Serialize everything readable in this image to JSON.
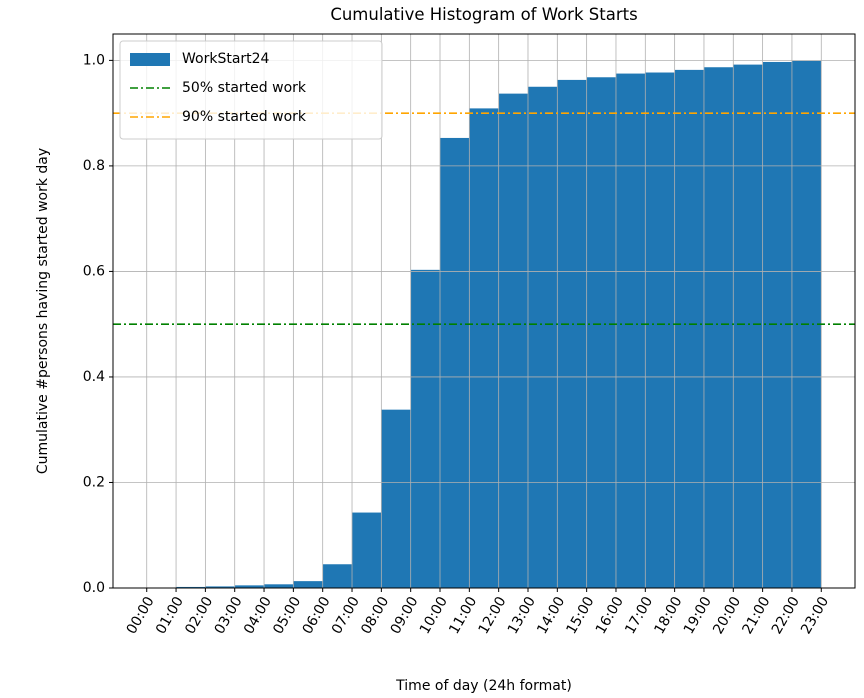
{
  "chart_data": {
    "type": "histogram",
    "title": "Cumulative Histogram of Work Starts",
    "xlabel": "Time of day (24h format)",
    "ylabel": "Cumulative #persons having started work day",
    "bins": [
      0,
      1,
      2,
      3,
      4,
      5,
      6,
      7,
      8,
      9,
      10,
      11,
      12,
      13,
      14,
      15,
      16,
      17,
      18,
      19,
      20,
      21,
      22,
      23
    ],
    "series": [
      {
        "name": "WorkStart24",
        "color": "#1f77b4",
        "values": [
          0.0,
          0.002,
          0.003,
          0.005,
          0.007,
          0.013,
          0.045,
          0.143,
          0.338,
          0.603,
          0.853,
          0.909,
          0.937,
          0.95,
          0.963,
          0.968,
          0.975,
          0.977,
          0.982,
          0.987,
          0.992,
          0.997,
          0.999
        ]
      }
    ],
    "hlines": [
      {
        "name": "50% started work",
        "value": 0.5,
        "color": "green"
      },
      {
        "name": "90% started work",
        "value": 0.9,
        "color": "orange"
      }
    ],
    "xlim": [
      -1.15,
      24.15
    ],
    "ylim": [
      0,
      1.05
    ],
    "xticks": [
      {
        "value": 0,
        "label": "00:00"
      },
      {
        "value": 1,
        "label": "01:00"
      },
      {
        "value": 2,
        "label": "02:00"
      },
      {
        "value": 3,
        "label": "03:00"
      },
      {
        "value": 4,
        "label": "04:00"
      },
      {
        "value": 5,
        "label": "05:00"
      },
      {
        "value": 6,
        "label": "06:00"
      },
      {
        "value": 7,
        "label": "07:00"
      },
      {
        "value": 8,
        "label": "08:00"
      },
      {
        "value": 9,
        "label": "09:00"
      },
      {
        "value": 10,
        "label": "10:00"
      },
      {
        "value": 11,
        "label": "11:00"
      },
      {
        "value": 12,
        "label": "12:00"
      },
      {
        "value": 13,
        "label": "13:00"
      },
      {
        "value": 14,
        "label": "14:00"
      },
      {
        "value": 15,
        "label": "15:00"
      },
      {
        "value": 16,
        "label": "16:00"
      },
      {
        "value": 17,
        "label": "17:00"
      },
      {
        "value": 18,
        "label": "18:00"
      },
      {
        "value": 19,
        "label": "19:00"
      },
      {
        "value": 20,
        "label": "20:00"
      },
      {
        "value": 21,
        "label": "21:00"
      },
      {
        "value": 22,
        "label": "22:00"
      },
      {
        "value": 23,
        "label": "23:00"
      }
    ],
    "yticks": [
      {
        "value": 0,
        "label": "0.0"
      },
      {
        "value": 0.2,
        "label": "0.2"
      },
      {
        "value": 0.4,
        "label": "0.4"
      },
      {
        "value": 0.6,
        "label": "0.6"
      },
      {
        "value": 0.8,
        "label": "0.8"
      },
      {
        "value": 1,
        "label": "1.0"
      }
    ],
    "grid": true,
    "legend": "upper left"
  }
}
